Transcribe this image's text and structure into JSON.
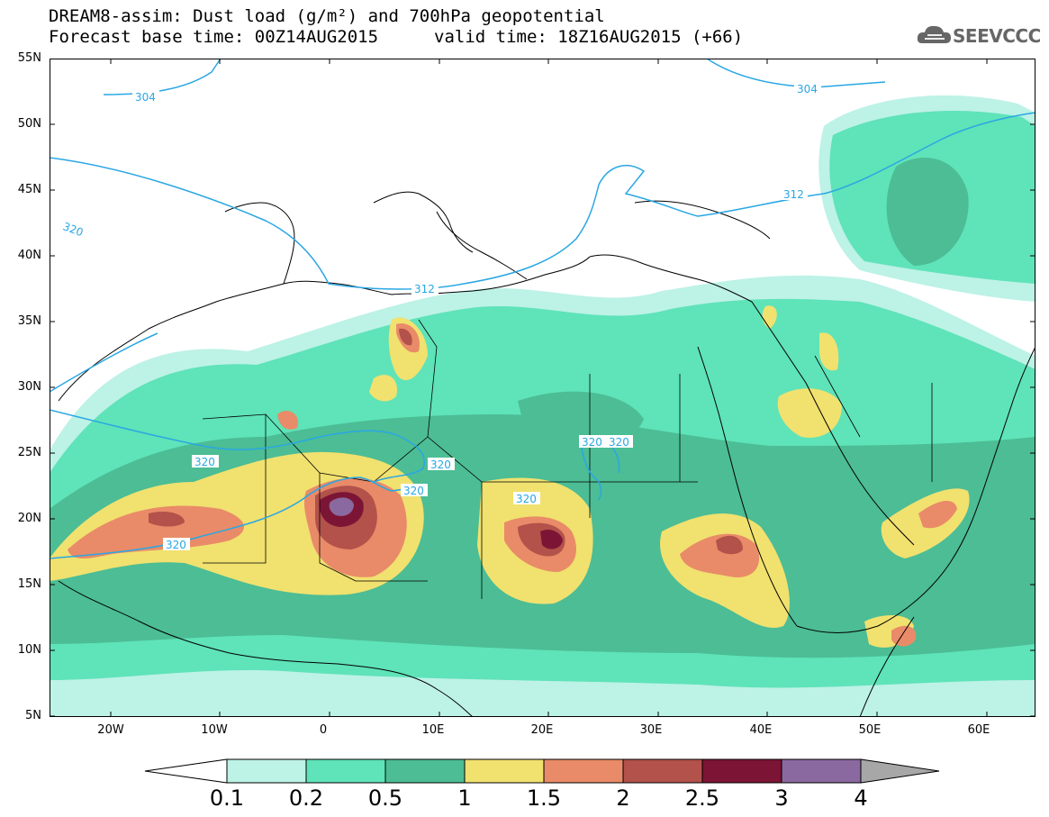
{
  "header": {
    "line1": "DREAM8-assim: Dust load (g/m²) and 700hPa geopotential",
    "line2_base": "Forecast base time: 00Z14AUG2015",
    "line2_valid": "valid time: 18Z16AUG2015 (+66)",
    "logo_text": "SEEVCCC",
    "logo_icon": "cloud-icon"
  },
  "axes": {
    "lat_labels": [
      "55N",
      "50N",
      "45N",
      "40N",
      "35N",
      "30N",
      "25N",
      "20N",
      "15N",
      "10N",
      "5N"
    ],
    "lon_labels": [
      "20W",
      "10W",
      "0",
      "10E",
      "20E",
      "30E",
      "40E",
      "50E",
      "60E"
    ],
    "lat_range": [
      5,
      55
    ],
    "lon_range": [
      -25,
      65
    ]
  },
  "contour_labels": [
    "304",
    "304",
    "312",
    "312",
    "320",
    "320",
    "320",
    "320",
    "320",
    "320",
    "320",
    "320"
  ],
  "colorbar": {
    "ticks": [
      "0.1",
      "0.2",
      "0.5",
      "1",
      "1.5",
      "2",
      "2.5",
      "3",
      "4"
    ],
    "colors": [
      "#bdf2e6",
      "#5fe3b8",
      "#4cbd95",
      "#f1e16f",
      "#e98b68",
      "#b2524a",
      "#7c1535",
      "#8a69a0",
      "#a7a7a7"
    ],
    "low_end_color": "#ffffff"
  },
  "colors": {
    "contour": "#2aa7e3",
    "border": "#000000"
  }
}
